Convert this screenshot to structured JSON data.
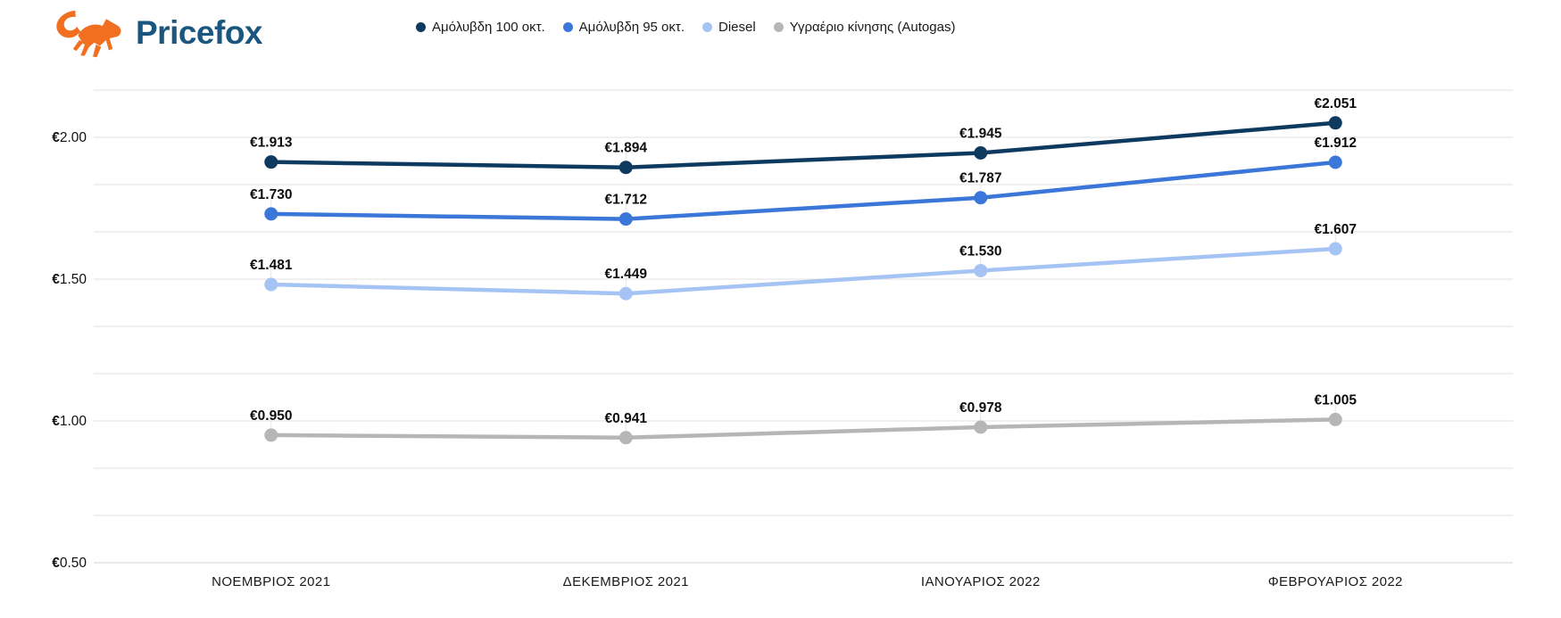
{
  "brand": {
    "name": "Pricefox",
    "wordmark_color": "#1A567E",
    "fox_color": "#F06F21"
  },
  "chart_data": {
    "type": "line",
    "title": "",
    "xlabel": "",
    "ylabel": "",
    "currency_prefix": "€",
    "grid": true,
    "legend_position": "top",
    "ylim": [
      0.5,
      2.1667
    ],
    "gridline_step": 0.1667,
    "categories": [
      "ΝΟΕΜΒΡΙΟΣ 2021",
      "ΔΕΚΕΜΒΡΙΟΣ 2021",
      "ΙΑΝΟΥΑΡΙΟΣ 2022",
      "ΦΕΒΡΟΥΑΡΙΟΣ 2022"
    ],
    "y_ticks": [
      {
        "prefix": "€",
        "number": "2.00",
        "value": 2.0
      },
      {
        "prefix": "€",
        "number": "1.50",
        "value": 1.5
      },
      {
        "prefix": "€",
        "number": "1.00",
        "value": 1.0
      },
      {
        "prefix": "€",
        "number": "0.50",
        "value": 0.5
      }
    ],
    "series": [
      {
        "name": "Αμόλυβδη 100 οκτ.",
        "color": "#0E3A5F",
        "values": [
          1.913,
          1.894,
          1.945,
          2.051
        ],
        "value_labels": [
          "€1.913",
          "€1.894",
          "€1.945",
          "€2.051"
        ]
      },
      {
        "name": "Αμόλυβδη 95 οκτ.",
        "color": "#3B77D8",
        "values": [
          1.73,
          1.712,
          1.787,
          1.912
        ],
        "value_labels": [
          "€1.730",
          "€1.712",
          "€1.787",
          "€1.912"
        ]
      },
      {
        "name": "Diesel",
        "color": "#A5C3F3",
        "values": [
          1.481,
          1.449,
          1.53,
          1.607
        ],
        "value_labels": [
          "€1.481",
          "€1.449",
          "€1.530",
          "€1.607"
        ]
      },
      {
        "name": "Υγραέριο κίνησης (Autogas)",
        "color": "#B6B6B6",
        "values": [
          0.95,
          0.941,
          0.978,
          1.005
        ],
        "value_labels": [
          "€0.950",
          "€0.941",
          "€0.978",
          "€1.005"
        ]
      }
    ]
  }
}
